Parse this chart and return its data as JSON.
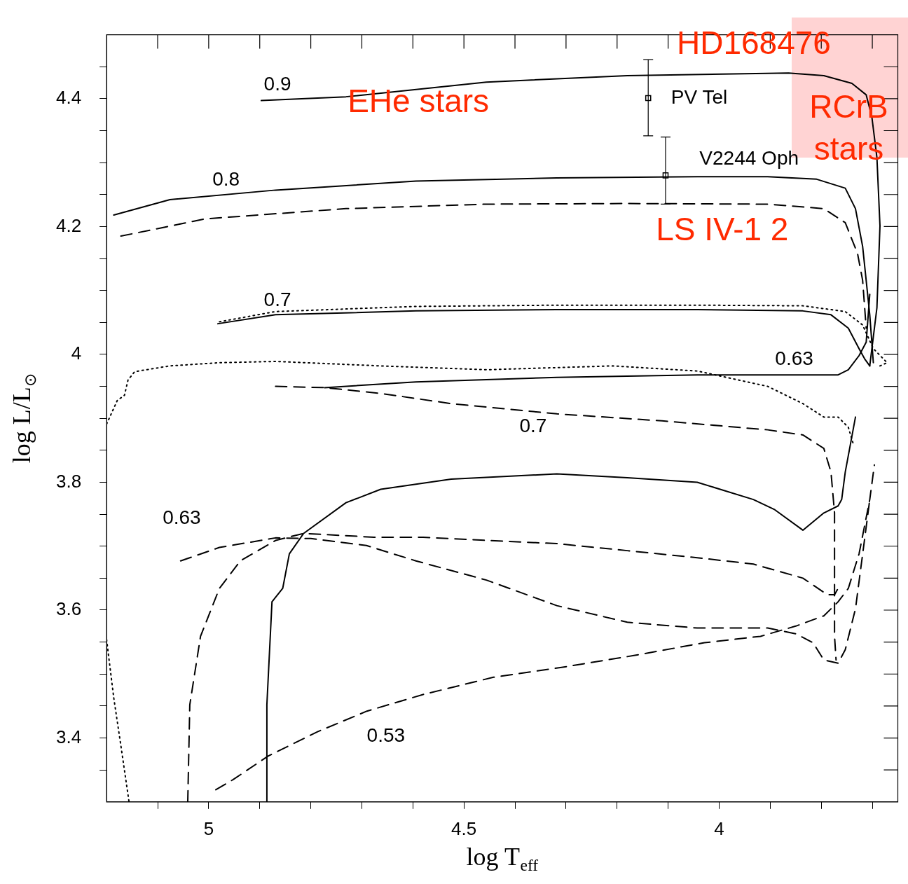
{
  "chart_data": {
    "type": "line",
    "xlabel": "log T$_{eff}$",
    "ylabel": "log L/L$_{⊙}$",
    "xlim": [
      5.2,
      3.65
    ],
    "ylim": [
      3.3,
      4.5
    ],
    "xticks": [
      {
        "value": 5.1,
        "label": null
      },
      5,
      {
        "value": 4.9,
        "label": null
      },
      {
        "value": 4.8,
        "label": null
      },
      {
        "value": 4.7,
        "label": null
      },
      {
        "value": 4.6,
        "label": null
      },
      4.5,
      {
        "value": 4.4,
        "label": null
      },
      {
        "value": 4.3,
        "label": null
      },
      {
        "value": 4.2,
        "label": null
      },
      {
        "value": 4.1,
        "label": null
      },
      4,
      {
        "value": 3.9,
        "label": null
      },
      {
        "value": 3.8,
        "label": null
      },
      {
        "value": 3.7,
        "label": null
      }
    ],
    "yticks": [
      {
        "value": 3.35,
        "label": null
      },
      3.4,
      {
        "value": 3.45,
        "label": null
      },
      {
        "value": 3.5,
        "label": null
      },
      {
        "value": 3.55,
        "label": null
      },
      3.6,
      {
        "value": 3.65,
        "label": null
      },
      {
        "value": 3.7,
        "label": null
      },
      {
        "value": 3.75,
        "label": null
      },
      3.8,
      {
        "value": 3.85,
        "label": null
      },
      {
        "value": 3.9,
        "label": null
      },
      {
        "value": 3.95,
        "label": null
      },
      4,
      {
        "value": 4.05,
        "label": null
      },
      {
        "value": 4.1,
        "label": null
      },
      {
        "value": 4.15,
        "label": null
      },
      4.2,
      {
        "value": 4.25,
        "label": null
      },
      {
        "value": 4.3,
        "label": null
      },
      {
        "value": 4.35,
        "label": null
      },
      4.4,
      {
        "value": 4.45,
        "label": null
      }
    ],
    "marker": "none",
    "series": [
      {
        "color": "#000000",
        "line_style": "solid",
        "x": [
          4.897,
          4.731,
          4.456,
          4.18,
          3.864,
          3.795,
          3.74,
          3.712,
          3.701,
          3.691,
          3.685,
          3.691,
          3.705
        ],
        "values": [
          4.397,
          4.403,
          4.426,
          4.436,
          4.44,
          4.436,
          4.424,
          4.406,
          4.372,
          4.308,
          4.201,
          4.073,
          3.982
        ]
      },
      {
        "color": "#000000",
        "line_style": "solid",
        "x": [
          5.186,
          5.076,
          4.869,
          4.594,
          4.318,
          4.043,
          3.905,
          3.809,
          3.753,
          3.733,
          3.719,
          3.705,
          3.698
        ],
        "values": [
          4.218,
          4.242,
          4.257,
          4.271,
          4.276,
          4.278,
          4.278,
          4.274,
          4.26,
          4.228,
          4.169,
          4.062,
          3.987
        ]
      },
      {
        "color": "#000000",
        "line_style": "dashed",
        "x": [
          5.172,
          5.007,
          4.731,
          4.456,
          4.18,
          3.905,
          3.795,
          3.753,
          3.729,
          3.719,
          3.712
        ],
        "values": [
          4.185,
          4.212,
          4.228,
          4.235,
          4.236,
          4.235,
          4.228,
          4.206,
          4.158,
          4.116,
          4.041
        ]
      },
      {
        "color": "#000000",
        "line_style": "dotted",
        "x": [
          4.979,
          4.869,
          4.594,
          4.318,
          4.043,
          3.836,
          3.753,
          3.719,
          3.698,
          3.671,
          3.685
        ],
        "values": [
          4.051,
          4.067,
          4.075,
          4.077,
          4.077,
          4.076,
          4.067,
          4.046,
          4.009,
          3.987,
          3.982
        ]
      },
      {
        "color": "#000000",
        "line_style": "solid",
        "x": [
          4.982,
          4.869,
          4.594,
          4.318,
          4.043,
          3.836,
          3.781,
          3.747,
          3.726,
          3.715,
          3.705
        ],
        "values": [
          4.048,
          4.062,
          4.068,
          4.07,
          4.07,
          4.068,
          4.062,
          4.041,
          4.009,
          3.993,
          3.982
        ]
      },
      {
        "color": "#000000",
        "line_style": "solid",
        "x": [
          4.773,
          4.594,
          4.318,
          4.043,
          3.767,
          3.747,
          3.726,
          3.712,
          3.705
        ],
        "values": [
          3.948,
          3.957,
          3.964,
          3.968,
          3.968,
          3.976,
          3.998,
          4.019,
          4.094
        ]
      },
      {
        "color": "#000000",
        "line_style": "dashed",
        "x": [
          4.869,
          4.773,
          4.663,
          4.525,
          4.318,
          4.112,
          3.905,
          3.836,
          3.795,
          3.781,
          3.774,
          3.774,
          3.771
        ],
        "values": [
          3.95,
          3.948,
          3.939,
          3.923,
          3.907,
          3.896,
          3.882,
          3.874,
          3.853,
          3.816,
          3.752,
          3.559,
          3.522
        ]
      },
      {
        "color": "#000000",
        "line_style": "dotted",
        "x": [
          5.2,
          5.179,
          5.165,
          5.158,
          5.145,
          5.076,
          4.979,
          4.869,
          4.663,
          4.456,
          4.208,
          4.043,
          3.905,
          3.836,
          3.795,
          3.767,
          3.747,
          3.737
        ],
        "values": [
          3.891,
          3.928,
          3.936,
          3.96,
          3.973,
          3.982,
          3.987,
          3.989,
          3.982,
          3.976,
          3.982,
          3.974,
          3.95,
          3.923,
          3.902,
          3.902,
          3.886,
          3.859
        ]
      },
      {
        "color": "#000000",
        "line_style": "solid",
        "x": [
          4.887,
          4.886,
          4.876,
          4.855,
          4.842,
          4.814,
          4.731,
          4.663,
          4.525,
          4.318,
          4.18,
          4.043,
          3.933,
          3.891,
          3.836,
          3.795,
          3.767,
          3.76,
          3.753,
          3.733
        ],
        "values": [
          3.3,
          3.452,
          3.613,
          3.634,
          3.688,
          3.72,
          3.768,
          3.789,
          3.805,
          3.813,
          3.807,
          3.8,
          3.773,
          3.757,
          3.725,
          3.752,
          3.763,
          3.773,
          3.816,
          3.902
        ]
      },
      {
        "color": "#000000",
        "line_style": "dashed",
        "x": [
          5.041,
          5.037,
          5.016,
          4.979,
          4.938,
          4.869,
          4.814,
          4.676,
          4.58,
          4.456,
          4.318,
          4.18,
          4.043,
          3.933,
          3.836,
          3.788,
          3.774,
          3.767
        ],
        "values": [
          3.3,
          3.452,
          3.559,
          3.634,
          3.677,
          3.709,
          3.72,
          3.714,
          3.714,
          3.709,
          3.704,
          3.693,
          3.682,
          3.672,
          3.65,
          3.624,
          3.624,
          3.634
        ]
      },
      {
        "color": "#000000",
        "line_style": "dashed",
        "x": [
          5.055,
          4.979,
          4.869,
          4.8,
          4.691,
          4.594,
          4.456,
          4.318,
          4.18,
          4.043,
          3.905,
          3.85,
          3.816,
          3.795,
          3.767,
          3.753,
          3.733,
          3.712,
          3.705
        ],
        "values": [
          3.677,
          3.698,
          3.713,
          3.712,
          3.701,
          3.677,
          3.647,
          3.607,
          3.581,
          3.572,
          3.572,
          3.563,
          3.549,
          3.522,
          3.517,
          3.538,
          3.602,
          3.73,
          3.773
        ]
      },
      {
        "color": "#000000",
        "line_style": "dashed",
        "x": [
          4.986,
          4.952,
          4.883,
          4.786,
          4.69,
          4.58,
          4.442,
          4.304,
          4.167,
          4.029,
          3.919,
          3.85,
          3.795,
          3.767,
          3.747,
          3.726,
          3.705,
          3.696
        ],
        "values": [
          3.319,
          3.335,
          3.372,
          3.41,
          3.442,
          3.468,
          3.495,
          3.511,
          3.529,
          3.549,
          3.559,
          3.575,
          3.591,
          3.613,
          3.634,
          3.688,
          3.773,
          3.827
        ]
      },
      {
        "color": "#000000",
        "line_style": "dotted",
        "x": [
          5.2,
          5.186,
          5.172,
          5.156
        ],
        "values": [
          3.554,
          3.463,
          3.388,
          3.3
        ]
      },
      {
        "type": "scatter",
        "marker": "square",
        "color": "#000000",
        "x": [
          4.139,
          4.105
        ],
        "values": [
          4.401,
          4.28
        ],
        "errors": [
          [
            4.342,
            4.461
          ],
          [
            4.235,
            4.34
          ]
        ]
      }
    ],
    "annotations": [
      "0.9",
      "0.8",
      "0.7",
      "0.63",
      "0.7",
      "0.63",
      "0.53",
      "PV Tel",
      "V2244 Oph",
      "HD168476",
      "EHe stars",
      "RCrB stars",
      "LS IV-1 2"
    ]
  }
}
